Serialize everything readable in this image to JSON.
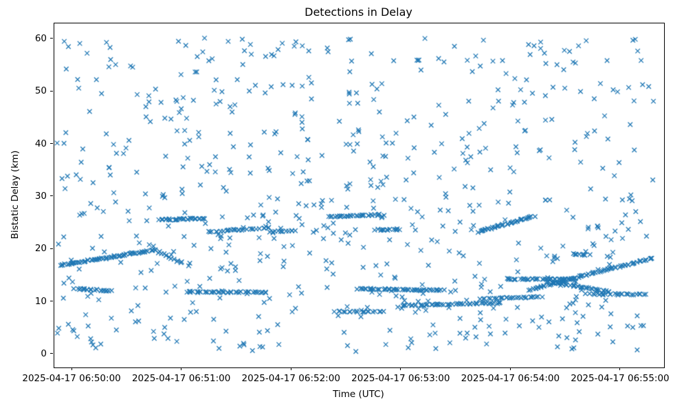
{
  "figure": {
    "background": "#ffffff",
    "spine_color": "#000000"
  },
  "chart_data": {
    "type": "scatter",
    "title": "Detections in Delay",
    "xlabel": "Time (UTC)",
    "ylabel": "Bistatic Delay (km)",
    "legend": "none",
    "grid": false,
    "marker": {
      "shape": "x",
      "color": "#1f77b4",
      "size": 6.5,
      "line_width": 1.3
    },
    "x_axis": {
      "unit": "seconds since 2025-04-17 06:50:00 UTC",
      "min": -9.8,
      "max": 323.7,
      "ticks": [
        0,
        60,
        120,
        180,
        240,
        300
      ],
      "tick_labels": [
        "2025-04-17 06:50:00",
        "2025-04-17 06:51:00",
        "2025-04-17 06:52:00",
        "2025-04-17 06:53:00",
        "2025-04-17 06:54:00",
        "2025-04-17 06:55:00"
      ]
    },
    "y_axis": {
      "min": -2.5,
      "max": 63,
      "ticks": [
        0,
        10,
        20,
        30,
        40,
        50,
        60
      ],
      "tick_labels": [
        "0",
        "10",
        "20",
        "30",
        "40",
        "50",
        "60"
      ]
    },
    "background_scatter": {
      "comment": "uniform clutter detections across full time span",
      "count": 680,
      "x_range": [
        -9,
        318
      ],
      "y_range": [
        0.5,
        60.2
      ],
      "seed": 1337
    },
    "jitter": {
      "x": 1.2,
      "y": 0.12
    },
    "tracks": [
      {
        "x0": -6,
        "x1": 46,
        "y0": 17.0,
        "y1": 19.9,
        "n": 65
      },
      {
        "x0": 2,
        "x1": 21,
        "y0": 12.5,
        "y1": 12.1,
        "n": 22
      },
      {
        "x0": 47,
        "x1": 60,
        "y0": 19.6,
        "y1": 17.4,
        "n": 14
      },
      {
        "x0": 48,
        "x1": 72,
        "y0": 25.6,
        "y1": 25.9,
        "n": 34
      },
      {
        "x0": 62,
        "x1": 106,
        "y0": 11.9,
        "y1": 11.8,
        "n": 42
      },
      {
        "x0": 74,
        "x1": 108,
        "y0": 23.3,
        "y1": 24.1,
        "n": 26
      },
      {
        "x0": 109,
        "x1": 122,
        "y0": 23.4,
        "y1": 23.5,
        "n": 12
      },
      {
        "x0": 141,
        "x1": 168,
        "y0": 26.2,
        "y1": 26.6,
        "n": 30
      },
      {
        "x0": 166,
        "x1": 179,
        "y0": 23.7,
        "y1": 23.8,
        "n": 14
      },
      {
        "x0": 144,
        "x1": 170,
        "y0": 8.2,
        "y1": 8.1,
        "n": 20
      },
      {
        "x0": 156,
        "x1": 203,
        "y0": 12.5,
        "y1": 12.2,
        "n": 50
      },
      {
        "x0": 180,
        "x1": 235,
        "y0": 9.3,
        "y1": 9.8,
        "n": 52
      },
      {
        "x0": 224,
        "x1": 256,
        "y0": 10.6,
        "y1": 10.9,
        "n": 28
      },
      {
        "x0": 222,
        "x1": 252,
        "y0": 23.3,
        "y1": 26.3,
        "n": 40
      },
      {
        "x0": 237,
        "x1": 273,
        "y0": 14.35,
        "y1": 14.3,
        "n": 40
      },
      {
        "x0": 260,
        "x1": 294,
        "y0": 13.9,
        "y1": 11.9,
        "n": 40
      },
      {
        "x0": 250,
        "x1": 318,
        "y0": 12.3,
        "y1": 18.4,
        "n": 75
      },
      {
        "x0": 284,
        "x1": 314,
        "y0": 11.5,
        "y1": 11.4,
        "n": 24
      },
      {
        "x0": 274,
        "x1": 282,
        "y0": 19.1,
        "y1": 18.9,
        "n": 10
      }
    ]
  }
}
